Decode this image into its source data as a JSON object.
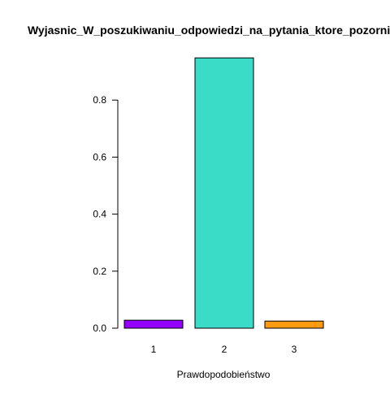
{
  "chart_data": {
    "type": "bar",
    "title": "Wyjasnic_W_poszukiwaniu_odpowiedzi_na_pytania_ktore_pozornie_nie",
    "xlabel": "Prawdopodobieństwo",
    "ylabel": "",
    "categories": [
      "1",
      "2",
      "3"
    ],
    "values": [
      0.028,
      0.948,
      0.025
    ],
    "colors": [
      "#9400FF",
      "#3ADCC7",
      "#FF9910"
    ],
    "ylim": [
      0,
      0.948
    ],
    "yticks": [
      "0.0",
      "0.2",
      "0.4",
      "0.6",
      "0.8"
    ],
    "grid": false,
    "legend": "none"
  }
}
